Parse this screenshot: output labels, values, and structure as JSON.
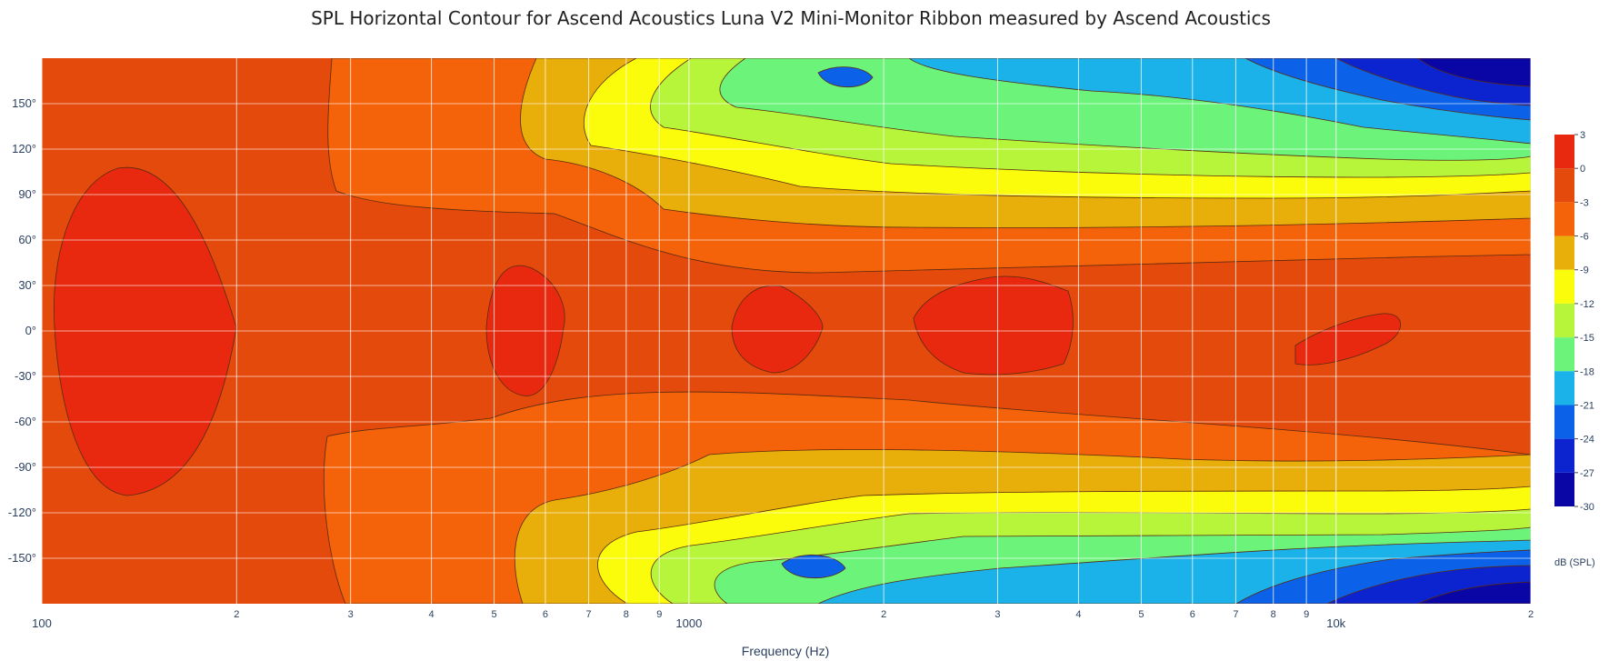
{
  "chart_data": {
    "type": "heatmap",
    "title": "SPL Horizontal Contour for Ascend Acoustics Luna V2 Mini-Monitor Ribbon measured by Ascend Acoustics",
    "xlabel": "Frequency (Hz)",
    "ylabel": "",
    "x_scale": "log",
    "xlim": [
      100,
      20000
    ],
    "ylim": [
      -180,
      180
    ],
    "x_ticks": [
      {
        "value": 100,
        "label": "100",
        "major": true
      },
      {
        "value": 200,
        "label": "2",
        "major": false
      },
      {
        "value": 300,
        "label": "3",
        "major": false
      },
      {
        "value": 400,
        "label": "4",
        "major": false
      },
      {
        "value": 500,
        "label": "5",
        "major": false
      },
      {
        "value": 600,
        "label": "6",
        "major": false
      },
      {
        "value": 700,
        "label": "7",
        "major": false
      },
      {
        "value": 800,
        "label": "8",
        "major": false
      },
      {
        "value": 900,
        "label": "9",
        "major": false
      },
      {
        "value": 1000,
        "label": "1000",
        "major": true
      },
      {
        "value": 2000,
        "label": "2",
        "major": false
      },
      {
        "value": 3000,
        "label": "3",
        "major": false
      },
      {
        "value": 4000,
        "label": "4",
        "major": false
      },
      {
        "value": 5000,
        "label": "5",
        "major": false
      },
      {
        "value": 6000,
        "label": "6",
        "major": false
      },
      {
        "value": 7000,
        "label": "7",
        "major": false
      },
      {
        "value": 8000,
        "label": "8",
        "major": false
      },
      {
        "value": 9000,
        "label": "9",
        "major": false
      },
      {
        "value": 10000,
        "label": "10k",
        "major": true
      },
      {
        "value": 20000,
        "label": "2",
        "major": false
      }
    ],
    "y_ticks": [
      {
        "value": 150,
        "label": "150°"
      },
      {
        "value": 120,
        "label": "120°"
      },
      {
        "value": 90,
        "label": "90°"
      },
      {
        "value": 60,
        "label": "60°"
      },
      {
        "value": 30,
        "label": "30°"
      },
      {
        "value": 0,
        "label": "0°"
      },
      {
        "value": -30,
        "label": "-30°"
      },
      {
        "value": -60,
        "label": "-60°"
      },
      {
        "value": -90,
        "label": "-90°"
      },
      {
        "value": -120,
        "label": "-120°"
      },
      {
        "value": -150,
        "label": "-150°"
      }
    ],
    "grid": true,
    "colorbar": {
      "title": "dB (SPL)",
      "range": [
        -30,
        3
      ],
      "ticks": [
        3,
        0,
        -3,
        -6,
        -9,
        -12,
        -15,
        -18,
        -21,
        -24,
        -27,
        -30
      ],
      "levels": [
        {
          "from": 0,
          "to": 3,
          "color": "#e8290f"
        },
        {
          "from": -3,
          "to": 0,
          "color": "#e34a0c"
        },
        {
          "from": -6,
          "to": -3,
          "color": "#f4630a"
        },
        {
          "from": -9,
          "to": -6,
          "color": "#e8ae09"
        },
        {
          "from": -12,
          "to": -9,
          "color": "#fbfb0c"
        },
        {
          "from": -15,
          "to": -12,
          "color": "#b6f53a"
        },
        {
          "from": -18,
          "to": -15,
          "color": "#6cf47a"
        },
        {
          "from": -21,
          "to": -18,
          "color": "#1ab2e8"
        },
        {
          "from": -24,
          "to": -21,
          "color": "#0c61e9"
        },
        {
          "from": -27,
          "to": -24,
          "color": "#0b24d0"
        },
        {
          "from": -30,
          "to": -27,
          "color": "#0a06a5"
        }
      ]
    },
    "contour_summary": [
      {
        "angle": 0,
        "freq_hz": [
          100,
          200
        ],
        "spl_db": 1
      },
      {
        "angle": 0,
        "freq_hz": [
          480,
          620
        ],
        "spl_db": 1
      },
      {
        "angle": 0,
        "freq_hz": [
          1300,
          4400
        ],
        "spl_db": 1
      },
      {
        "angle": 0,
        "freq_hz": [
          9000,
          20000
        ],
        "spl_db": -3
      },
      {
        "angle": 90,
        "freq_hz": [
          100,
          1000
        ],
        "spl_db": -4
      },
      {
        "angle": 90,
        "freq_hz": [
          2000,
          20000
        ],
        "spl_db": -11
      },
      {
        "angle": 150,
        "freq_hz": [
          1000,
          5000
        ],
        "spl_db": -14
      },
      {
        "angle": 150,
        "freq_hz": [
          10000,
          20000
        ],
        "spl_db": -24
      },
      {
        "angle": -150,
        "freq_hz": [
          1000,
          5000
        ],
        "spl_db": -17
      },
      {
        "angle": -150,
        "freq_hz": [
          10000,
          20000
        ],
        "spl_db": -27
      }
    ]
  }
}
